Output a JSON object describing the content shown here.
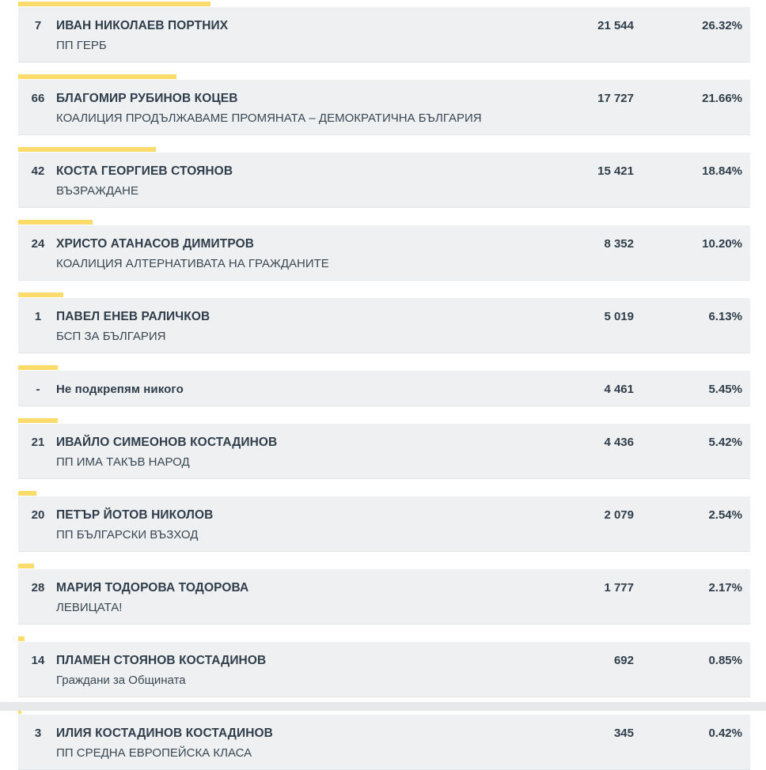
{
  "accent_color": "#fbdc6b",
  "rows": [
    {
      "num": "7",
      "name": "ИВАН НИКОЛАЕВ ПОРТНИХ",
      "party": "ПП ГЕРБ",
      "votes": "21 544",
      "percent": "26.32%",
      "share": 26.32
    },
    {
      "num": "66",
      "name": "БЛАГОМИР РУБИНОВ КОЦЕВ",
      "party": "КОАЛИЦИЯ ПРОДЪЛЖАВАМЕ ПРОМЯНАТА – ДЕМОКРАТИЧНА БЪЛГАРИЯ",
      "votes": "17 727",
      "percent": "21.66%",
      "share": 21.66
    },
    {
      "num": "42",
      "name": "КОСТА ГЕОРГИЕВ СТОЯНОВ",
      "party": "ВЪЗРАЖДАНЕ",
      "votes": "15 421",
      "percent": "18.84%",
      "share": 18.84
    },
    {
      "num": "24",
      "name": "ХРИСТО АТАНАСОВ ДИМИТРОВ",
      "party": "КОАЛИЦИЯ АЛТЕРНАТИВАТА НА ГРАЖДАНИТЕ",
      "votes": "8 352",
      "percent": "10.20%",
      "share": 10.2
    },
    {
      "num": "1",
      "name": "ПАВЕЛ ЕНЕВ РАЛИЧКОВ",
      "party": "БСП ЗА БЪЛГАРИЯ",
      "votes": "5 019",
      "percent": "6.13%",
      "share": 6.13
    },
    {
      "num": "-",
      "name": "Не подкрепям никого",
      "party": "",
      "votes": "4 461",
      "percent": "5.45%",
      "share": 5.45
    },
    {
      "num": "21",
      "name": "ИВАЙЛО СИМЕОНОВ КОСТАДИНОВ",
      "party": "ПП ИМА ТАКЪВ НАРОД",
      "votes": "4 436",
      "percent": "5.42%",
      "share": 5.42
    },
    {
      "num": "20",
      "name": "ПЕТЪР ЙОТОВ НИКОЛОВ",
      "party": "ПП БЪЛГАРСКИ ВЪЗХОД",
      "votes": "2 079",
      "percent": "2.54%",
      "share": 2.54
    },
    {
      "num": "28",
      "name": "МАРИЯ ТОДОРОВА ТОДОРОВА",
      "party": "ЛЕВИЦАТА!",
      "votes": "1 777",
      "percent": "2.17%",
      "share": 2.17
    },
    {
      "num": "14",
      "name": "ПЛАМЕН СТОЯНОВ КОСТАДИНОВ",
      "party": "Граждани за Общината",
      "votes": "692",
      "percent": "0.85%",
      "share": 0.85
    },
    {
      "num": "3",
      "name": "ИЛИЯ КОСТАДИНОВ КОСТАДИНОВ",
      "party": "ПП СРЕДНА ЕВРОПЕЙСКА КЛАСА",
      "votes": "345",
      "percent": "0.42%",
      "share": 0.42
    }
  ]
}
